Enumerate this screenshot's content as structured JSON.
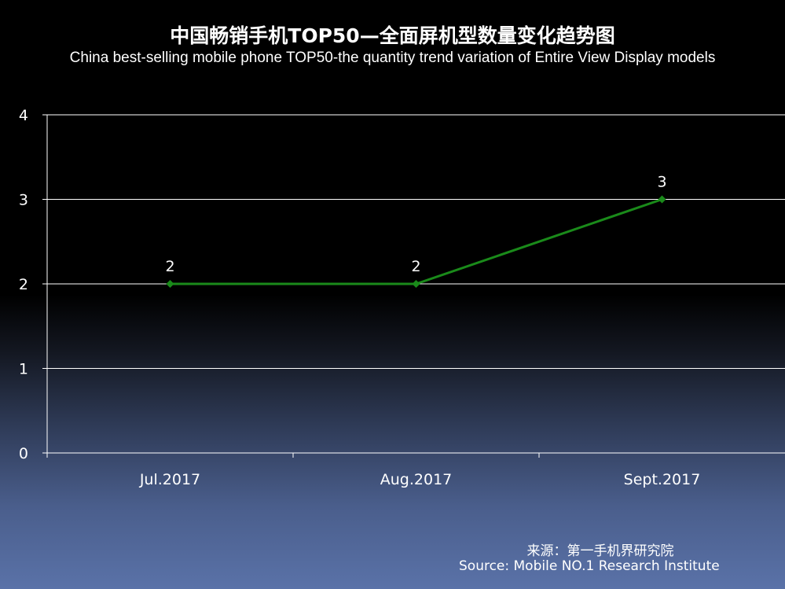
{
  "chart_data": {
    "type": "line",
    "title": "中国畅销手机TOP50—全面屏机型数量变化趋势图",
    "subtitle": "China best-selling mobile phone TOP50-the quantity trend variation of Entire View Display models",
    "categories": [
      "Jul.2017",
      "Aug.2017",
      "Sept.2017"
    ],
    "series": [
      {
        "values": [
          2,
          2,
          3
        ],
        "color": "#1a8a1a"
      }
    ],
    "data_labels": [
      "2",
      "2",
      "3"
    ],
    "ylim": [
      0,
      4
    ],
    "yticks": [
      "0",
      "1",
      "2",
      "3",
      "4"
    ],
    "xlabel": "",
    "ylabel": "",
    "grid": true,
    "legend": "none"
  },
  "source": {
    "cn": "来源：第一手机界研究院",
    "en": "Source: Mobile NO.1 Research Institute"
  },
  "colors": {
    "line": "#1a8a1a",
    "grid": "#ffffff",
    "text": "#ffffff"
  }
}
